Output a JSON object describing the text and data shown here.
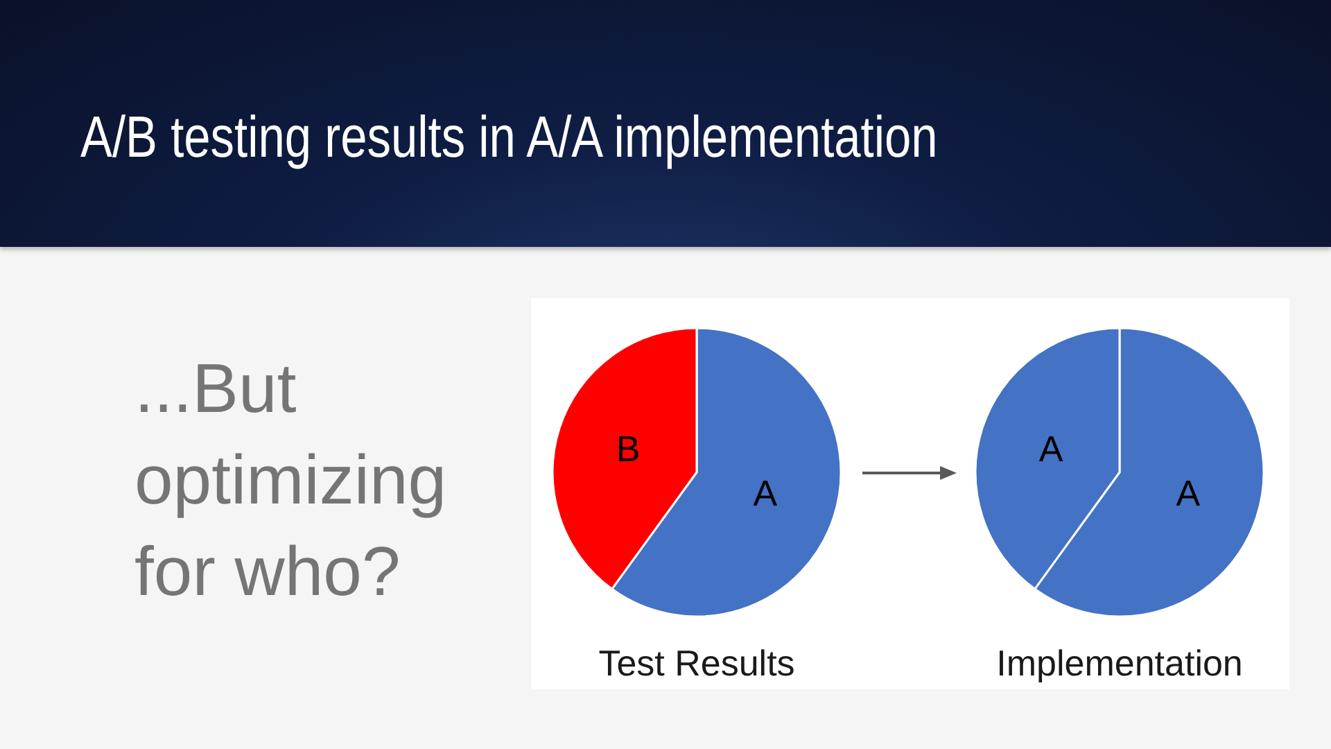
{
  "chart_data": [
    {
      "type": "other",
      "title": "A/B testing results in A/A implementation",
      "annotations": [
        "...But optimizing for who?"
      ]
    },
    {
      "type": "pie",
      "title": "Test Results",
      "categories": [
        "A",
        "B"
      ],
      "values": [
        60,
        40
      ],
      "colors": [
        "#4472c4",
        "#ff0000"
      ]
    },
    {
      "type": "pie",
      "title": "Implementation",
      "categories": [
        "A",
        "A"
      ],
      "values": [
        60,
        40
      ],
      "colors": [
        "#4472c4",
        "#4472c4"
      ]
    }
  ]
}
